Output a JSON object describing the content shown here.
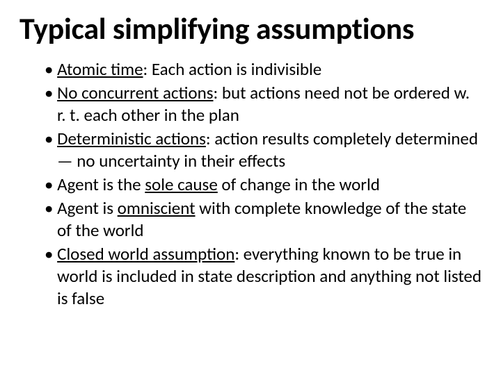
{
  "title_fontsize": 44,
  "body_fontsize": 25,
  "text_color": "#000000",
  "background_color": "#ffffff",
  "font_family": "Calibri",
  "title": "Typical simplifying assumptions",
  "bullets": [
    {
      "term": "Atomic time",
      "rest": ": Each action is indivisible"
    },
    {
      "term": "No concurrent actions",
      "rest": ": but actions need not be ordered w. r. t. each other in the plan"
    },
    {
      "term": "Deterministic actions",
      "rest": ": action results completely determined —  no uncertainty in their effects"
    },
    {
      "term_prefix": "Agent is the ",
      "term": "sole cause",
      "rest": " of change in the world"
    },
    {
      "term_prefix": "Agent is ",
      "term": "omniscient",
      "rest": " with complete knowledge of the state of the world"
    },
    {
      "term": "Closed world assumption",
      "rest": ": everything known to be true in world is included in state description and anything not listed is false"
    }
  ],
  "bullet_char": "•"
}
